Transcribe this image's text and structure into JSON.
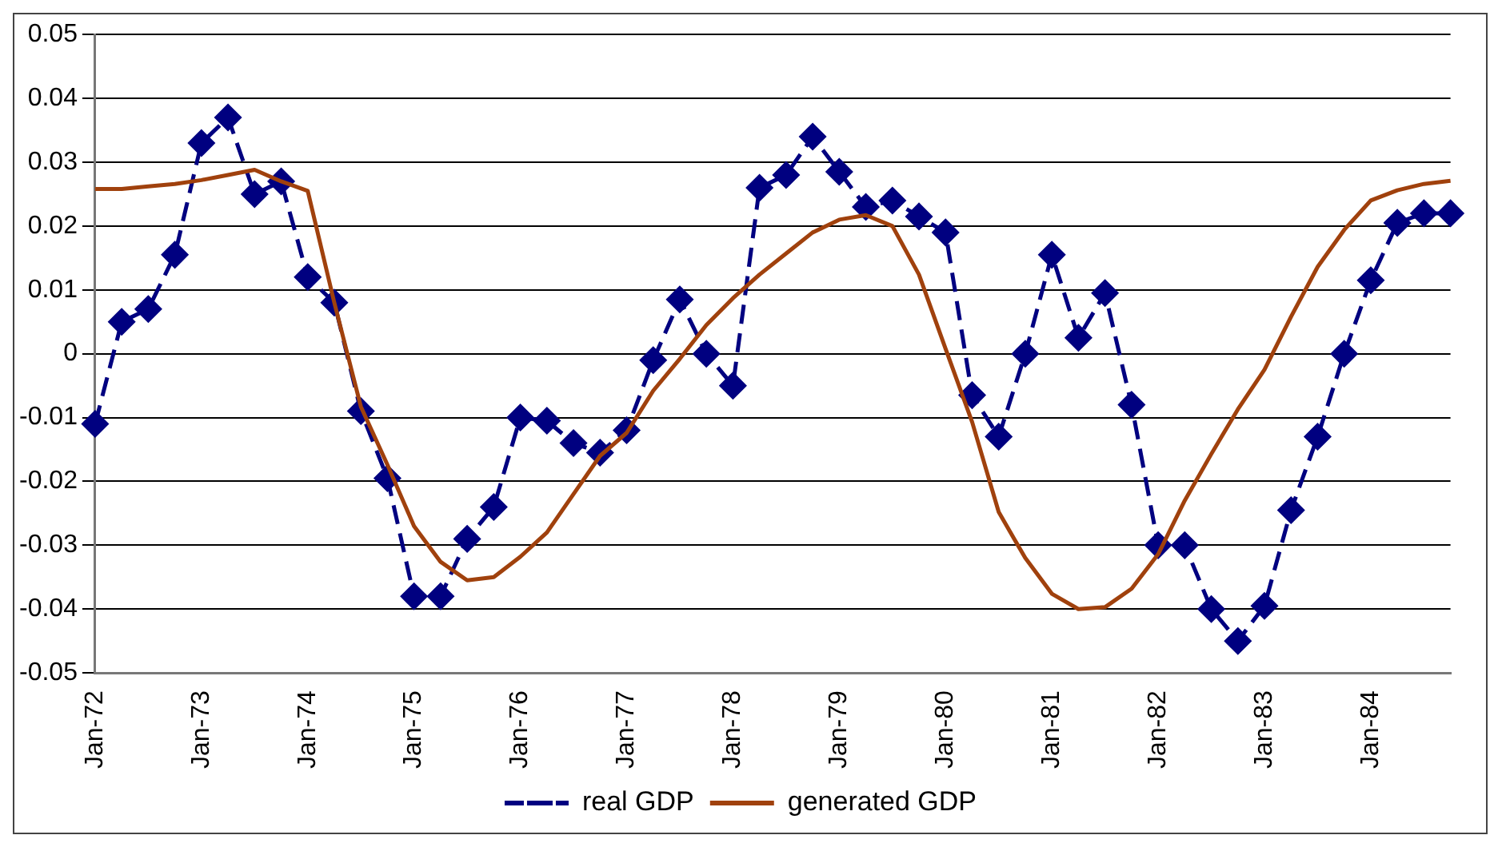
{
  "chart_data": {
    "type": "line",
    "categories": [
      "Jan-72",
      null,
      null,
      null,
      "Jan-73",
      null,
      null,
      null,
      "Jan-74",
      null,
      null,
      null,
      "Jan-75",
      null,
      null,
      null,
      "Jan-76",
      null,
      null,
      null,
      "Jan-77",
      null,
      null,
      null,
      "Jan-78",
      null,
      null,
      null,
      "Jan-79",
      null,
      null,
      null,
      "Jan-80",
      null,
      null,
      null,
      "Jan-81",
      null,
      null,
      null,
      "Jan-82",
      null,
      null,
      null,
      "Jan-83",
      null,
      null,
      null,
      "Jan-84",
      null,
      null,
      null
    ],
    "series": [
      {
        "name": "real GDP",
        "color": "#000080",
        "marker": "diamond",
        "line_style": "dashed",
        "values": [
          -0.011,
          0.005,
          0.007,
          0.0155,
          0.033,
          0.037,
          0.025,
          0.027,
          0.012,
          0.008,
          -0.009,
          -0.0195,
          -0.038,
          -0.038,
          -0.029,
          -0.024,
          -0.01,
          -0.0105,
          -0.014,
          -0.0155,
          -0.012,
          -0.001,
          0.0085,
          0.0,
          -0.005,
          0.026,
          0.028,
          0.034,
          0.0285,
          0.023,
          0.024,
          0.0215,
          0.019,
          -0.0065,
          -0.013,
          0.0,
          0.0155,
          0.0025,
          0.0095,
          -0.008,
          -0.03,
          -0.03,
          -0.04,
          -0.045,
          -0.0395,
          -0.0245,
          -0.013,
          0.0,
          0.0115,
          0.0205,
          0.022,
          0.022
        ]
      },
      {
        "name": "generated GDP",
        "color": "#a0410d",
        "marker": "none",
        "line_style": "solid",
        "values": [
          0.0258,
          0.0258,
          0.0262,
          0.0266,
          0.0272,
          0.028,
          0.0288,
          0.027,
          0.0255,
          0.008,
          -0.0083,
          -0.0174,
          -0.027,
          -0.0326,
          -0.0355,
          -0.035,
          -0.0318,
          -0.028,
          -0.022,
          -0.016,
          -0.0124,
          -0.0058,
          -0.0008,
          0.0045,
          0.0087,
          0.0124,
          0.0157,
          0.019,
          0.021,
          0.0217,
          0.02,
          0.0124,
          0.0008,
          -0.0107,
          -0.0248,
          -0.032,
          -0.0376,
          -0.04,
          -0.0397,
          -0.0368,
          -0.0314,
          -0.023,
          -0.0157,
          -0.0087,
          -0.0025,
          0.0058,
          0.0136,
          0.0194,
          0.024,
          0.0256,
          0.0266,
          0.0271
        ]
      }
    ],
    "ylim": [
      -0.05,
      0.05
    ],
    "yticks": [
      {
        "value": -0.05,
        "label": "-0.05"
      },
      {
        "value": -0.04,
        "label": "-0.04"
      },
      {
        "value": -0.03,
        "label": "-0.03"
      },
      {
        "value": -0.02,
        "label": "-0.02"
      },
      {
        "value": -0.01,
        "label": "-0.01"
      },
      0,
      {
        "value": 0.01,
        "label": "0.01"
      },
      {
        "value": 0.02,
        "label": "0.02"
      },
      {
        "value": 0.03,
        "label": "0.03"
      },
      {
        "value": 0.04,
        "label": "0.04"
      },
      {
        "value": 0.05,
        "label": "0.05"
      }
    ],
    "grid": "y",
    "legend": "bottom"
  }
}
